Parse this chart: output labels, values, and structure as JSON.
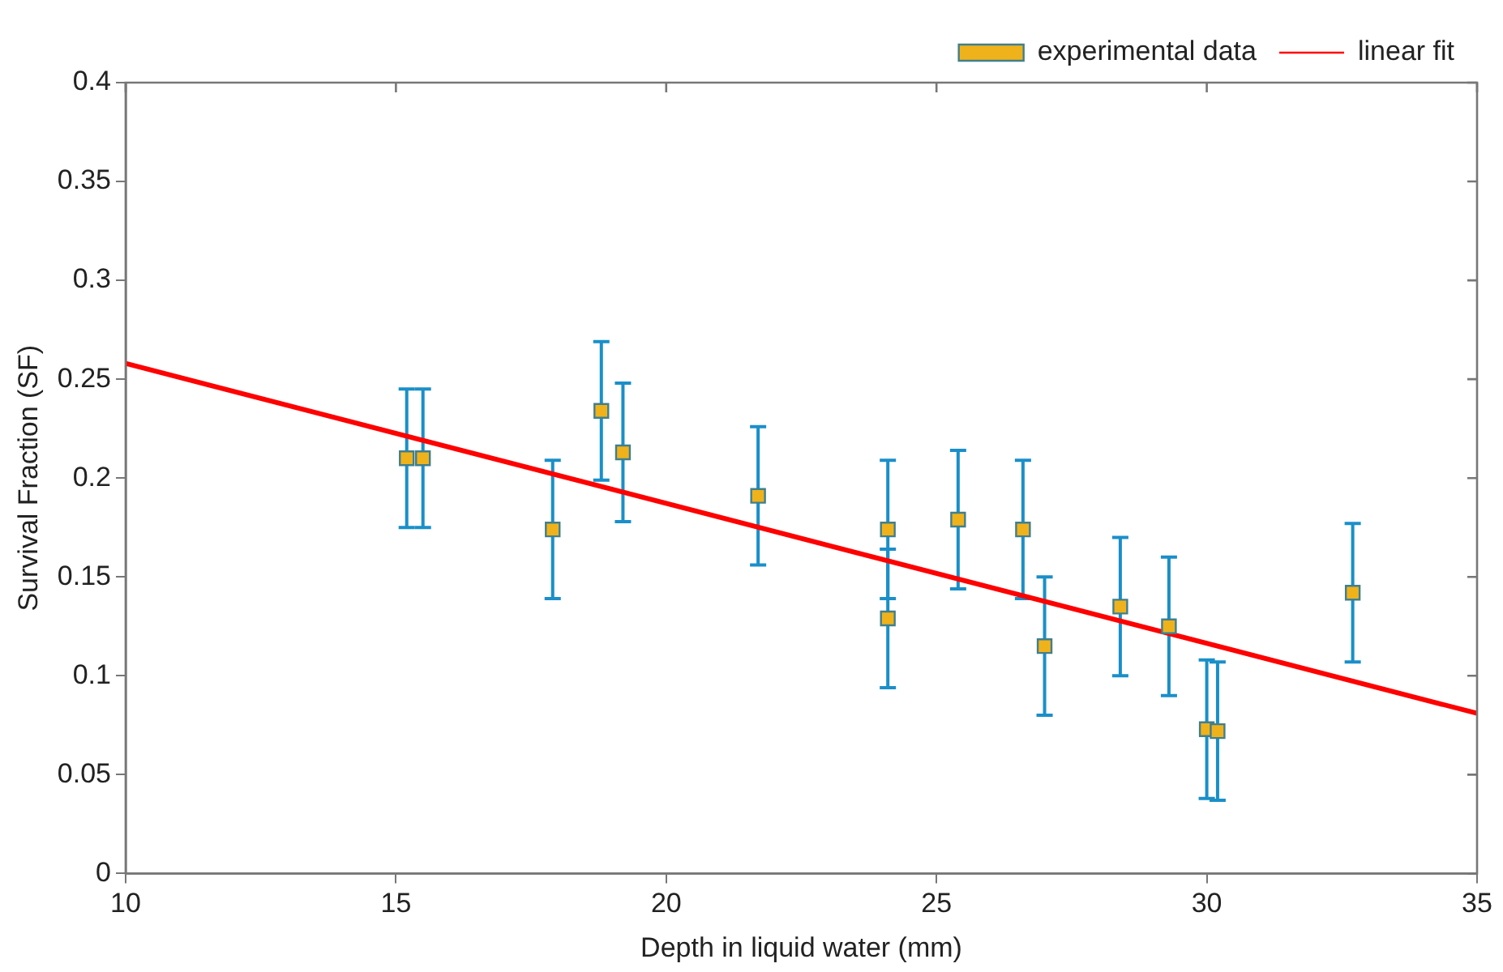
{
  "chart_data": {
    "type": "scatter",
    "xlabel": "Depth in liquid water (mm)",
    "ylabel": "Survival Fraction (SF)",
    "xlim": [
      10,
      35
    ],
    "xticks": [
      10,
      15,
      20,
      25,
      30,
      35
    ],
    "ylim": [
      0,
      0.4
    ],
    "yticks": [
      0,
      0.05,
      0.1,
      0.15,
      0.2,
      0.25,
      0.3,
      0.35,
      0.4
    ],
    "grid": false,
    "legend": "top right",
    "series": [
      {
        "name": "experimental data",
        "type": "scatter",
        "marker": "square",
        "color": "#f0b21a",
        "x": [
          15.2,
          15.5,
          17.9,
          18.8,
          19.2,
          21.7,
          24.1,
          24.1,
          25.4,
          26.6,
          27.0,
          28.4,
          29.3,
          30.0,
          30.2,
          32.7
        ],
        "values": [
          0.21,
          0.21,
          0.174,
          0.234,
          0.213,
          0.191,
          0.174,
          0.129,
          0.179,
          0.174,
          0.115,
          0.135,
          0.125,
          0.073,
          0.072,
          0.142
        ],
        "errors": [
          0.035,
          0.035,
          0.035,
          0.035,
          0.035,
          0.035,
          0.035,
          0.035,
          0.035,
          0.035,
          0.035,
          0.035,
          0.035,
          0.035,
          0.035,
          0.035
        ]
      },
      {
        "name": "linear fit",
        "type": "line",
        "marker": "none",
        "line_style": "solid",
        "color": "#ff0000",
        "x": [
          10,
          35
        ],
        "values": [
          0.258,
          0.081
        ]
      }
    ]
  }
}
